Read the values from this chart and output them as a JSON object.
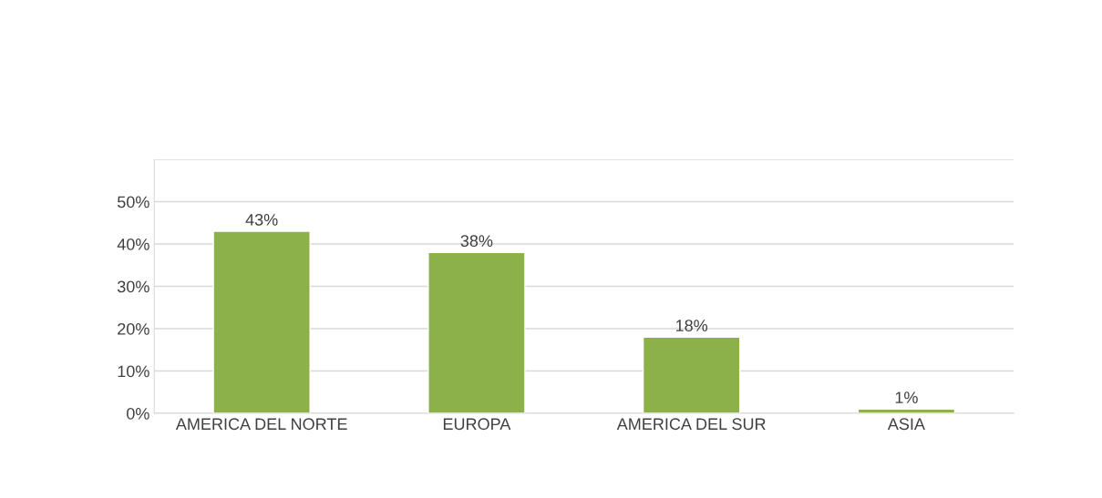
{
  "chart_data": {
    "type": "bar",
    "categories": [
      "AMERICA DEL NORTE",
      "EUROPA",
      "AMERICA DEL SUR",
      "ASIA"
    ],
    "values": [
      43,
      38,
      18,
      1
    ],
    "color": "#8db14a",
    "value_labels": [
      "43%",
      "38%",
      "18%",
      "1%"
    ],
    "ylim": [
      0,
      60
    ],
    "yticks": [
      {
        "value": 0,
        "label": "0%"
      },
      {
        "value": 10,
        "label": "10%"
      },
      {
        "value": 20,
        "label": "20%"
      },
      {
        "value": 30,
        "label": "30%"
      },
      {
        "value": 40,
        "label": "40%"
      },
      {
        "value": 50,
        "label": "50%"
      },
      {
        "value": 60,
        "label": null
      }
    ],
    "grid": "y"
  }
}
